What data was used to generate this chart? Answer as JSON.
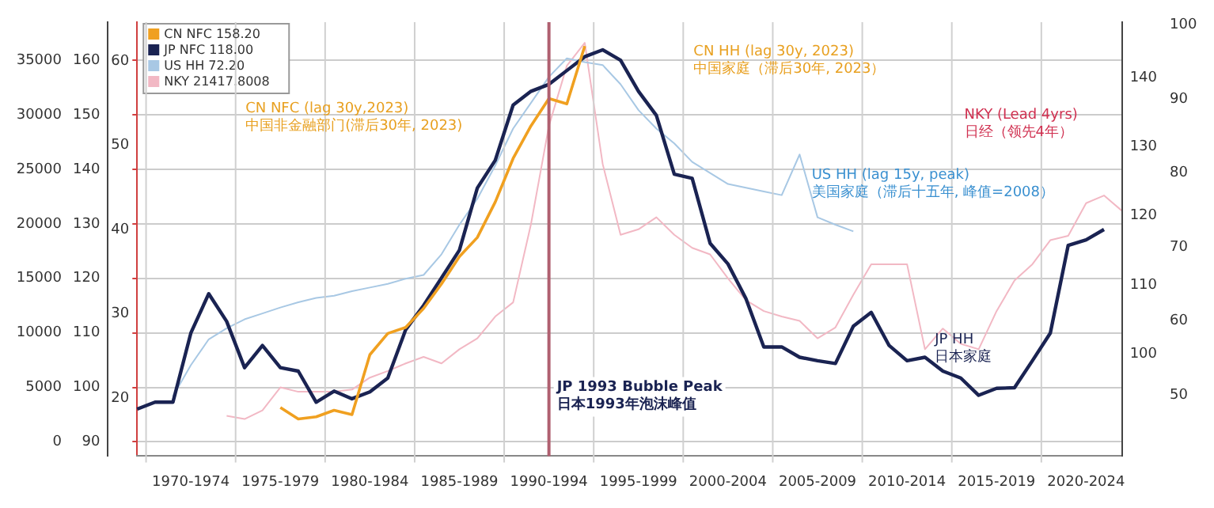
{
  "chart_data": [
    {
      "type": "line",
      "categories": [
        null,
        null,
        null,
        "1970-1974",
        null,
        null,
        null,
        null,
        "1975-1979",
        null,
        null,
        null,
        null,
        "1980-1984",
        null,
        null,
        null,
        null,
        "1985-1989",
        null,
        null,
        null,
        null,
        "1990-1994",
        null,
        null,
        null,
        null,
        "1995-1999",
        null,
        null,
        null,
        null,
        "2000-2004",
        null,
        null,
        null,
        null,
        "2005-2009",
        null,
        null,
        null,
        null,
        "2010-2014",
        null,
        null,
        null,
        null,
        "2015-2019",
        null,
        null,
        null,
        null,
        "2020-2024",
        null,
        null
      ],
      "ylim": [
        13.1,
        64.6
      ],
      "yticks": [
        20,
        30,
        40,
        50,
        60
      ],
      "y2lim": [
        85.2,
        148
      ],
      "y2ticks": [
        100,
        110,
        120,
        130,
        140
      ],
      "y3lim": [
        87.4,
        167
      ],
      "y3ticks": [
        90,
        100,
        110,
        120,
        130,
        140,
        150,
        160
      ],
      "grid": "x",
      "legend": "top left",
      "series": [
        {
          "name": "CN NFC 158.20",
          "color": "#f0a020",
          "axis": "y3",
          "values": [
            null,
            null,
            null,
            null,
            null,
            null,
            null,
            null,
            96.3,
            94.2,
            94.6,
            95.8,
            95,
            106,
            109.9,
            111,
            114.5,
            119,
            124,
            127.5,
            134,
            142,
            148,
            153,
            152,
            162.6,
            null,
            null,
            null,
            null,
            null,
            null,
            null,
            null,
            null,
            null,
            null,
            null,
            null,
            null,
            null,
            null,
            null,
            null,
            null,
            null,
            null,
            null,
            null,
            null,
            null,
            null,
            null,
            null,
            null,
            null
          ]
        },
        {
          "name": "JP NFC 118.00",
          "color": "#1a2352",
          "axis": "y2",
          "values": [
            92,
            93,
            93,
            103,
            108.7,
            104.7,
            98,
            101.2,
            98,
            97.5,
            93,
            94.6,
            93.5,
            94.5,
            96.5,
            103.5,
            107,
            111,
            115,
            124,
            128,
            136,
            138,
            139,
            141,
            143,
            144,
            142.5,
            138,
            134.5,
            126,
            125.4,
            116,
            113,
            108,
            101,
            101,
            99.5,
            99,
            98.6,
            104,
            106,
            101.2,
            99,
            99.5,
            97.5,
            96.5,
            94,
            95,
            95.1,
            99,
            103,
            115.7,
            116.5,
            118,
            null
          ]
        }
      ],
      "ref_lines": [
        {
          "axis": "x",
          "value": "1990-1994",
          "label": "JP 1993 Bubble Peak\n日本1993年泡沫峰值",
          "color": "#b06070"
        }
      ],
      "annotations": [
        "CN NFC (lag 30y,2023)\n中国非金融部门(滞后30年, 2023)",
        "CN HH (lag 30y, 2023)\n中国家庭（滞后30年, 2023）",
        "US HH (lag 15y, peak)\n美国家庭（滞后十五年, 峰值=2008）",
        "NKY (Lead 4yrs)\n日经（领先4年）",
        "JP HH\n日本家庭"
      ]
    },
    {
      "type": "line",
      "categories": [
        null,
        null,
        null,
        null,
        null,
        null,
        null,
        null,
        null,
        null,
        null,
        null,
        null,
        null,
        null,
        null,
        null,
        null,
        null,
        null,
        null,
        null,
        null,
        null,
        null,
        null,
        null,
        null,
        null,
        null,
        null,
        null,
        null,
        null,
        null,
        null,
        null,
        null,
        null,
        null,
        null,
        null,
        null,
        null,
        null,
        null,
        null,
        null,
        null,
        null,
        null,
        null,
        null,
        null,
        null,
        null
      ],
      "ylim": [
        -1300,
        38500
      ],
      "yticks": [
        0,
        5000,
        10000,
        15000,
        20000,
        25000,
        30000,
        35000
      ],
      "y2lim": [
        41.7,
        100.4
      ],
      "y2ticks": [
        50,
        60,
        70,
        80,
        90,
        100
      ],
      "grid": "y",
      "legend": "top left",
      "series": [
        {
          "name": "US HH 72.20",
          "color": "#a8c8e4",
          "axis": "y2",
          "values": [
            null,
            null,
            49.8,
            54,
            57.5,
            59,
            60.2,
            61,
            61.8,
            62.5,
            63.1,
            63.4,
            64,
            64.5,
            65,
            65.7,
            66.2,
            69,
            73,
            76.5,
            81,
            86,
            89.5,
            93,
            95.5,
            95,
            94.6,
            92,
            88.5,
            86,
            84,
            81.5,
            80,
            78.5,
            78,
            77.5,
            77,
            82.5,
            74,
            73,
            72.1,
            null,
            null,
            null,
            null,
            null,
            null,
            null,
            null,
            null,
            null,
            null,
            null,
            null,
            null,
            null
          ]
        },
        {
          "name": "NKY 21417.8008",
          "color": "#f2b8c4",
          "values": [
            null,
            null,
            null,
            null,
            null,
            2400,
            2100,
            2900,
            5000,
            4600,
            4600,
            4600,
            4800,
            5900,
            6500,
            7200,
            7800,
            7200,
            8500,
            9500,
            11500,
            12800,
            20000,
            29000,
            34500,
            36600,
            25500,
            19000,
            19500,
            20600,
            19000,
            17800,
            17200,
            15000,
            13000,
            12000,
            11500,
            11100,
            9500,
            10500,
            13500,
            16300,
            16300,
            16300,
            8500,
            10400,
            9000,
            8500,
            12000,
            14800,
            16300,
            18500,
            18900,
            21900,
            22600,
            21200
          ]
        }
      ]
    }
  ]
}
